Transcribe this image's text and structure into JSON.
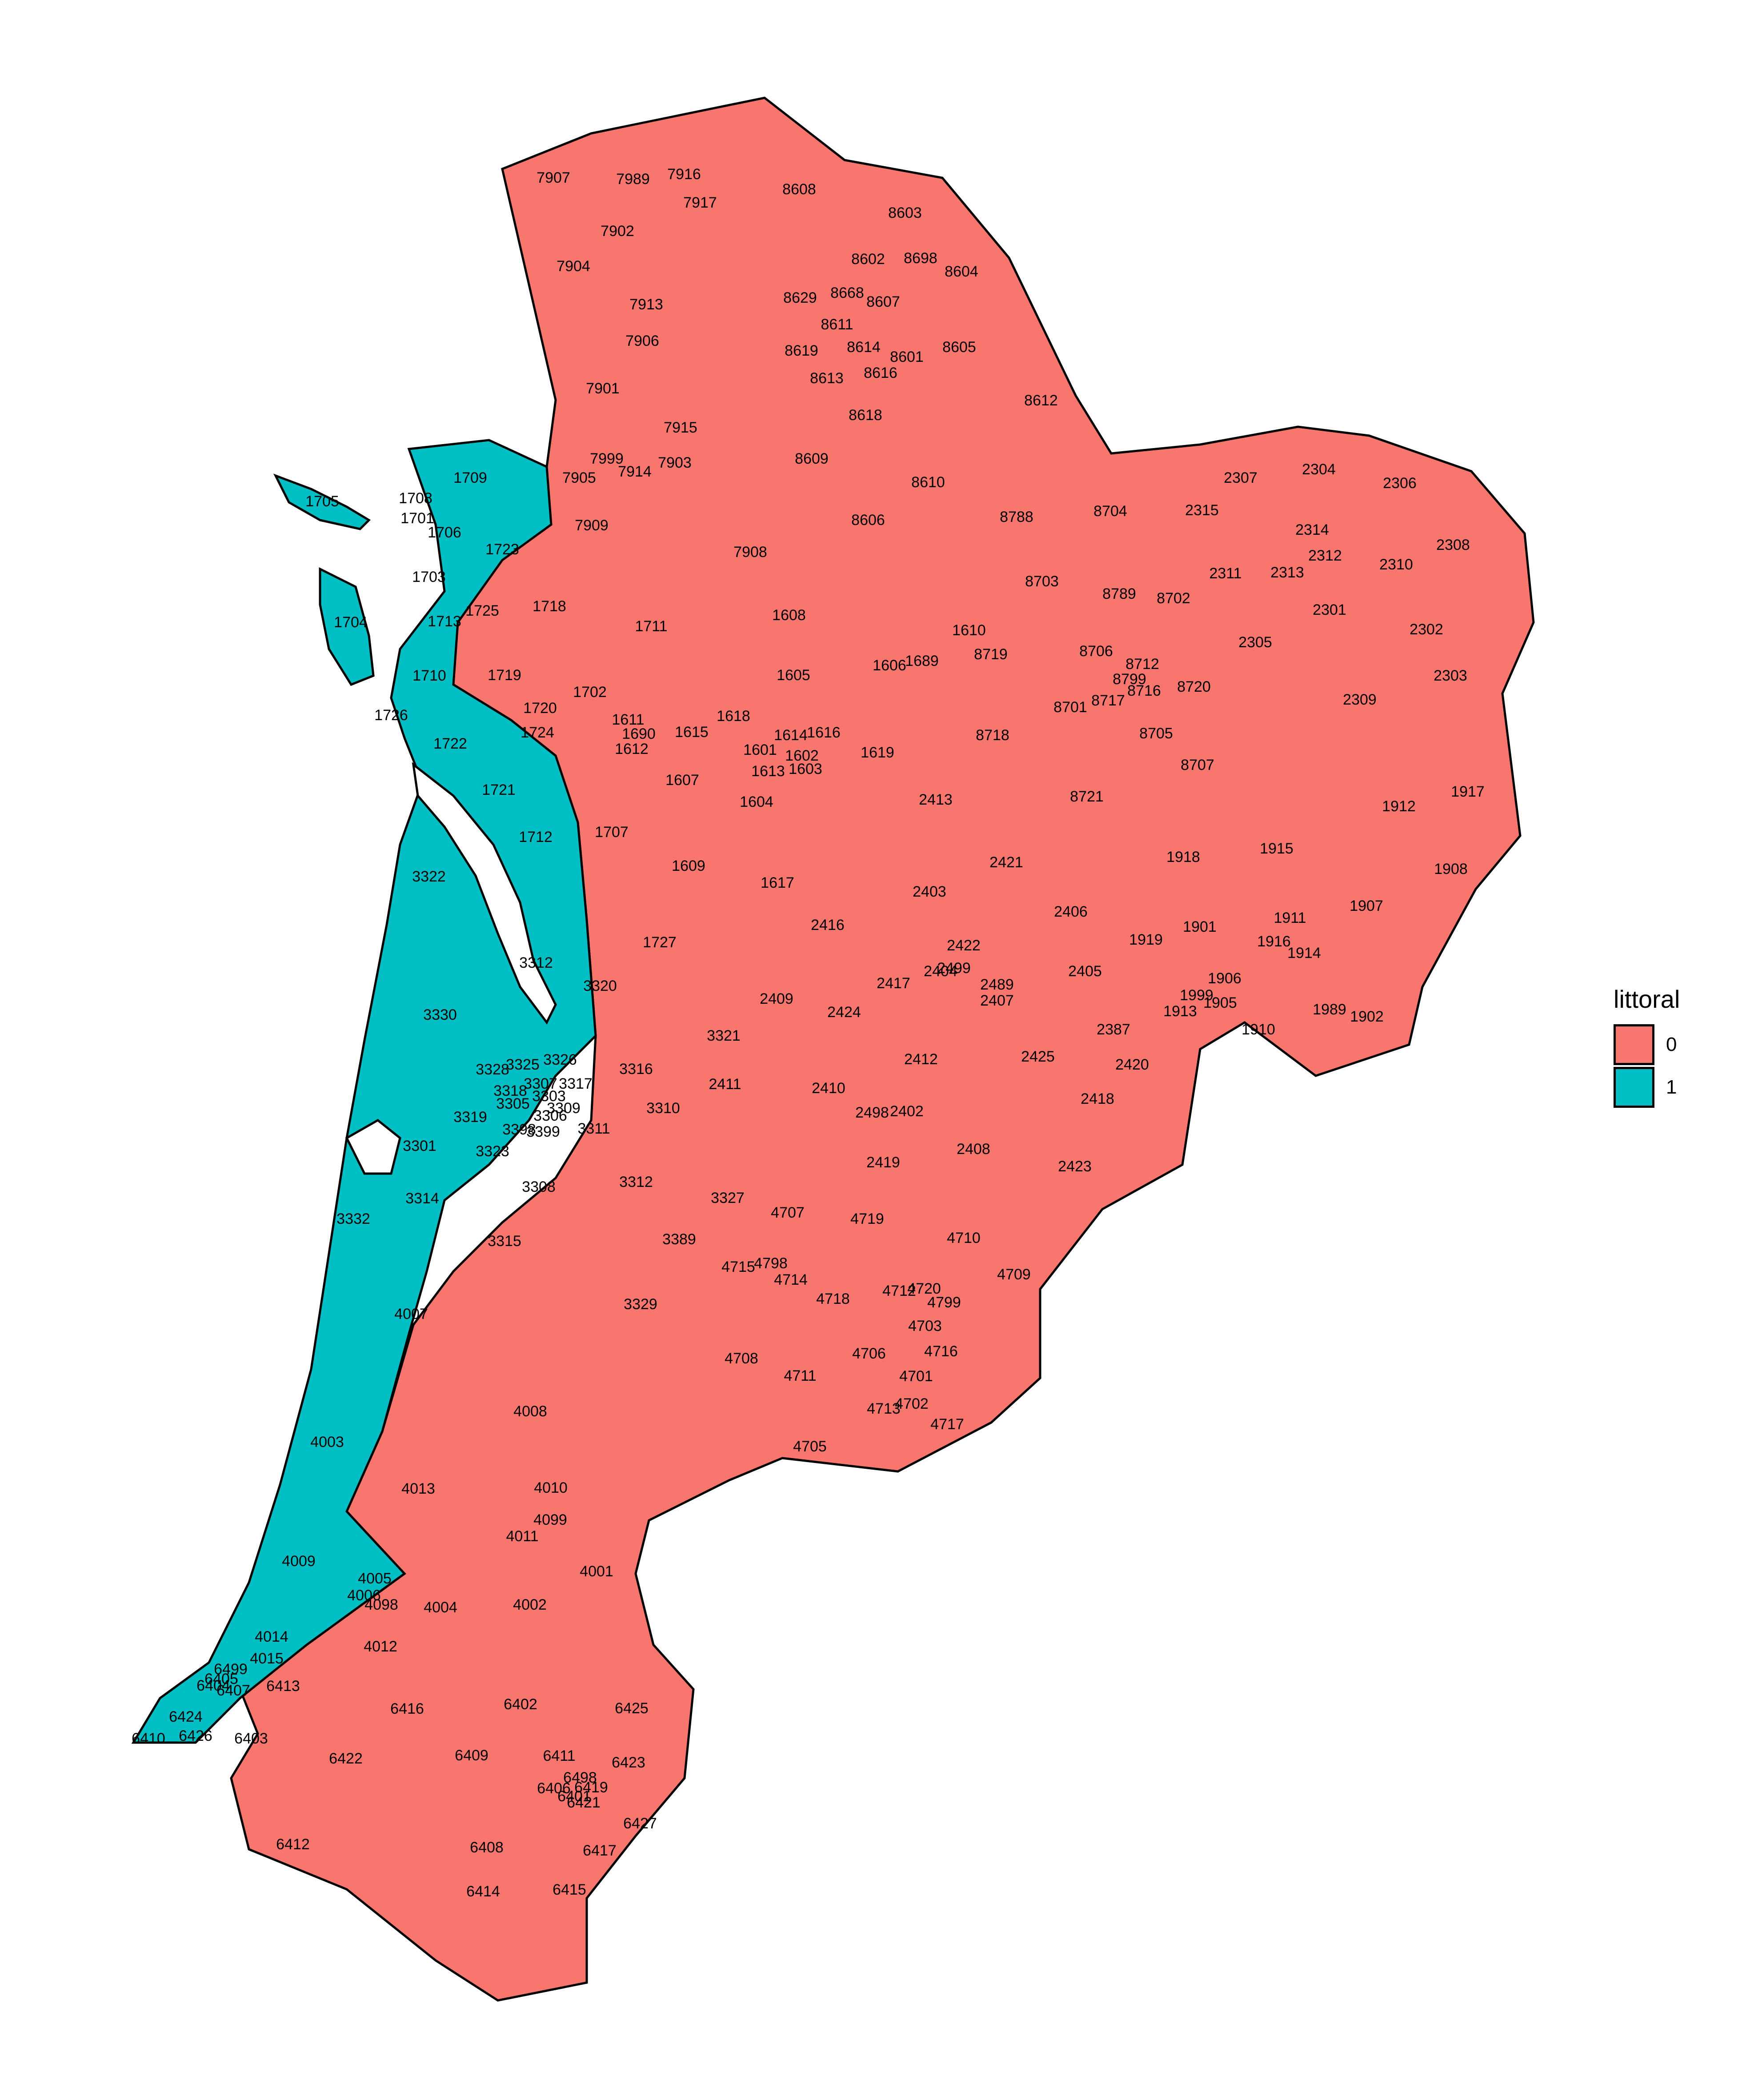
{
  "legend": {
    "title": "littoral",
    "items": [
      {
        "value": "0",
        "color": "#F8766D"
      },
      {
        "value": "1",
        "color": "#00BFC4"
      }
    ]
  },
  "regions_littoral_1": [
    "1709",
    "1705",
    "1708",
    "1701",
    "1706",
    "1723",
    "1703",
    "1713",
    "1725",
    "1704",
    "1710",
    "1726",
    "1722",
    "1721",
    "1712",
    "3322",
    "3330",
    "3312",
    "3301",
    "3314",
    "3332",
    "4007",
    "4003",
    "4009",
    "4005",
    "4014",
    "4015",
    "6413",
    "6424",
    "6410",
    "6426"
  ],
  "labels": [
    "7907",
    "7989",
    "7916",
    "7917",
    "8608",
    "8603",
    "7902",
    "8602",
    "8698",
    "7904",
    "8604",
    "8629",
    "8668",
    "8607",
    "7913",
    "8611",
    "7906",
    "8619",
    "8614",
    "8601",
    "8605",
    "8613",
    "8616",
    "7901",
    "8612",
    "8618",
    "7915",
    "1709",
    "7999",
    "7905",
    "7914",
    "7903",
    "8609",
    "8610",
    "2307",
    "2304",
    "2306",
    "1705",
    "1708",
    "1701",
    "7909",
    "8606",
    "8788",
    "8704",
    "2315",
    "1706",
    "7908",
    "2314",
    "2308",
    "1723",
    "8703",
    "2311",
    "2313",
    "2312",
    "2310",
    "1703",
    "1725",
    "8789",
    "8702",
    "1718",
    "1713",
    "1608",
    "1610",
    "2301",
    "2302",
    "1704",
    "1711",
    "8719",
    "8706",
    "2305",
    "1710",
    "1719",
    "1605",
    "1606",
    "1689",
    "8712",
    "8799",
    "8716",
    "8717",
    "8701",
    "8720",
    "2303",
    "1702",
    "2309",
    "1726",
    "1720",
    "1724",
    "1611",
    "1690",
    "1615",
    "1618",
    "1614",
    "1616",
    "1612",
    "1601",
    "1602",
    "1613",
    "1603",
    "1619",
    "8718",
    "8705",
    "8707",
    "1722",
    "1607",
    "1604",
    "1721",
    "2413",
    "8721",
    "1912",
    "1917",
    "1712",
    "1707",
    "1915",
    "1609",
    "2421",
    "1918",
    "1908",
    "3322",
    "1617",
    "2403",
    "2406",
    "1911",
    "1907",
    "2416",
    "1901",
    "1919",
    "1916",
    "1914",
    "1727",
    "2422",
    "2489",
    "2499",
    "2405",
    "3312",
    "2417",
    "2404",
    "2407",
    "1906",
    "1999",
    "1913",
    "1905",
    "1910",
    "3320",
    "2409",
    "2424",
    "1989",
    "1902",
    "3330",
    "3321",
    "2387",
    "2425",
    "2412",
    "2420",
    "3328",
    "3325",
    "3326",
    "3316",
    "2411",
    "2410",
    "3307",
    "3317",
    "3318",
    "3303",
    "3309",
    "3319",
    "2498",
    "2402",
    "3310",
    "2418",
    "3305",
    "3306",
    "3398",
    "3399",
    "3311",
    "3301",
    "3323",
    "2419",
    "2408",
    "2423",
    "3308",
    "3312",
    "3327",
    "3314",
    "4707",
    "4719",
    "4710",
    "3332",
    "3315",
    "3389",
    "4715",
    "4798",
    "4714",
    "4709",
    "4712",
    "4799",
    "4720",
    "4718",
    "3329",
    "4007",
    "4703",
    "4716",
    "4708",
    "4706",
    "4711",
    "4701",
    "4717",
    "4702",
    "4713",
    "4008",
    "4003",
    "4705",
    "4010",
    "4013",
    "4099",
    "4011",
    "4001",
    "4009",
    "4005",
    "4006",
    "4098",
    "4004",
    "4002",
    "4012",
    "4014",
    "4015",
    "6413",
    "6499",
    "6404",
    "6407",
    "6405",
    "6416",
    "6402",
    "6425",
    "6424",
    "6410",
    "6426",
    "6403",
    "6422",
    "6409",
    "6411",
    "6423",
    "6406",
    "6498",
    "6419",
    "6421",
    "6401",
    "6427",
    "6412",
    "6408",
    "6417",
    "6414",
    "6415"
  ]
}
